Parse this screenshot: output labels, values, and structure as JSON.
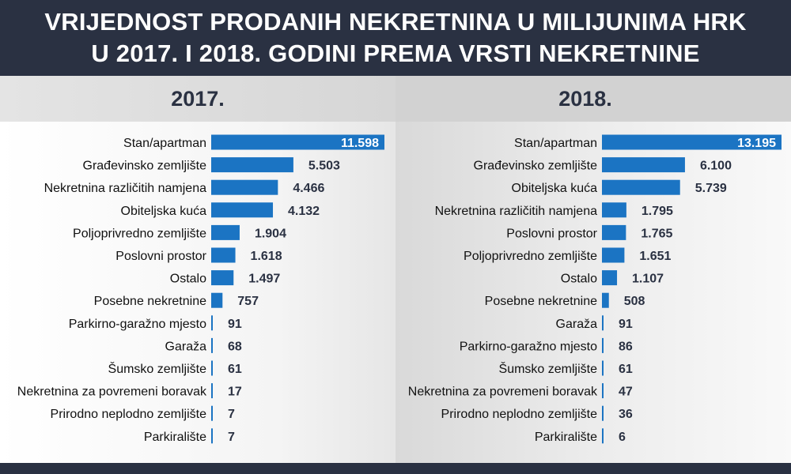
{
  "title": {
    "line1": "VRIJEDNOST PRODANIH NEKRETNINA U MILIJUNIMA HRK",
    "line2": "U 2017. I 2018. GODINI PREMA VRSTI NEKRETNINE"
  },
  "colors": {
    "bar": "#1b74c3",
    "header": "#2a3142",
    "value_text": "#2a3142"
  },
  "chart_data": [
    {
      "type": "bar",
      "orientation": "horizontal",
      "title": "2017.",
      "categories": [
        "Stan/apartman",
        "Građevinsko zemljište",
        "Nekretnina različitih namjena",
        "Obiteljska kuća",
        "Poljoprivredno zemljište",
        "Poslovni prostor",
        "Ostalo",
        "Posebne nekretnine",
        "Parkirno-garažno mjesto",
        "Garaža",
        "Šumsko zemljište",
        "Nekretnina za povremeni boravak",
        "Prirodno neplodno zemljište",
        "Parkiralište"
      ],
      "values": [
        11598,
        5503,
        4466,
        4132,
        1904,
        1618,
        1497,
        757,
        91,
        68,
        61,
        17,
        7,
        7
      ],
      "value_labels": [
        "11.598",
        "5.503",
        "4.466",
        "4.132",
        "1.904",
        "1.618",
        "1.497",
        "757",
        "91",
        "68",
        "61",
        "17",
        "7",
        "7"
      ]
    },
    {
      "type": "bar",
      "orientation": "horizontal",
      "title": "2018.",
      "categories": [
        "Stan/apartman",
        "Građevinsko zemljište",
        "Obiteljska kuća",
        "Nekretnina različitih namjena",
        "Poslovni prostor",
        "Poljoprivredno zemljište",
        "Ostalo",
        "Posebne nekretnine",
        "Garaža",
        "Parkirno-garažno mjesto",
        "Šumsko zemljište",
        "Nekretnina za povremeni boravak",
        "Prirodno neplodno zemljište",
        "Parkiralište"
      ],
      "values": [
        13195,
        6100,
        5739,
        1795,
        1765,
        1651,
        1107,
        508,
        91,
        86,
        61,
        47,
        36,
        6
      ],
      "value_labels": [
        "13.195",
        "6.100",
        "5.739",
        "1.795",
        "1.765",
        "1.651",
        "1.107",
        "508",
        "91",
        "86",
        "61",
        "47",
        "36",
        "6"
      ]
    }
  ]
}
